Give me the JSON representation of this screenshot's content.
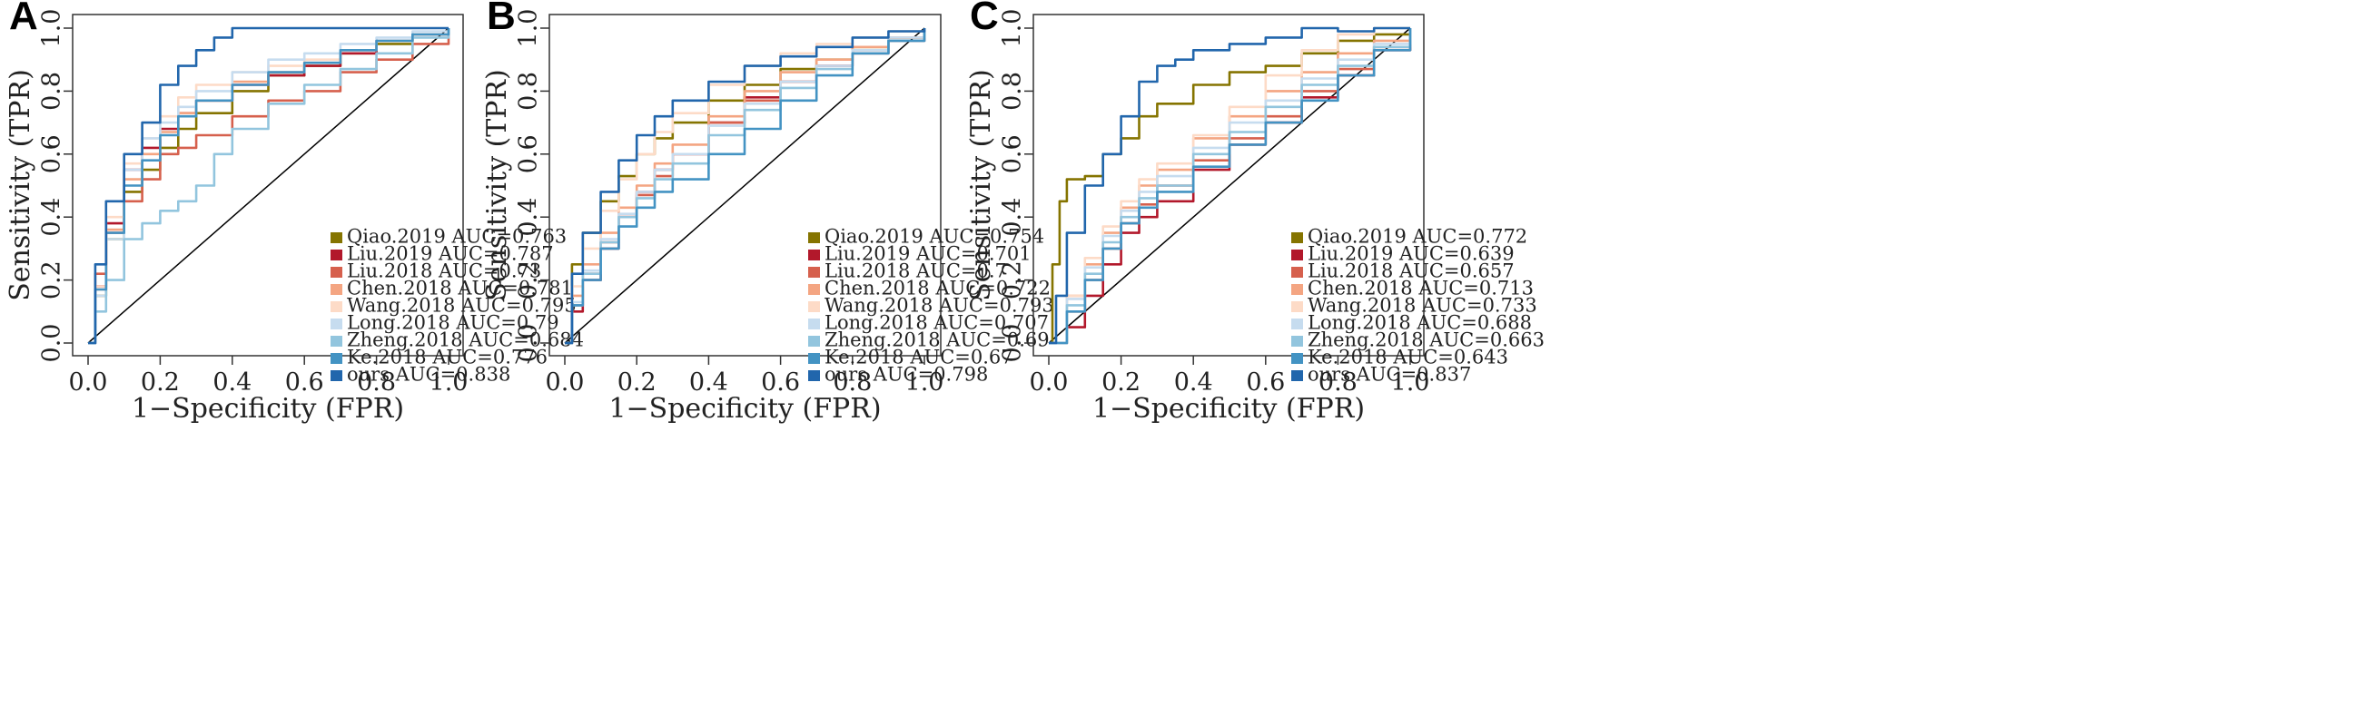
{
  "figure": {
    "x_label": "1−Specificity (FPR)",
    "y_label": "Sensitivity (TPR)",
    "ticks": [
      "0.0",
      "0.2",
      "0.4",
      "0.6",
      "0.8",
      "1.0"
    ]
  },
  "colors": {
    "Qiao.2019": "#857400",
    "Liu.2019": "#b2182b",
    "Liu.2018": "#d6604d",
    "Chen.2018": "#f4a582",
    "Wang.2018": "#fddbc7",
    "Long.2018": "#c6dcef",
    "Zheng.2018": "#92c5de",
    "Ke.2018": "#4393c3",
    "ours": "#2166ac",
    "diagonal": "#000000"
  },
  "chart_data": [
    {
      "type": "line",
      "panel": "A",
      "title": "",
      "xlabel": "1−Specificity (FPR)",
      "ylabel": "Sensitivity (TPR)",
      "xlim": [
        0,
        1
      ],
      "ylim": [
        0,
        1
      ],
      "reference_line": [
        [
          0,
          0
        ],
        [
          1,
          1
        ]
      ],
      "series": [
        {
          "key": "Qiao.2019",
          "legend": "Qiao.2019 AUC=0.763",
          "x": [
            0,
            0.02,
            0.05,
            0.1,
            0.15,
            0.2,
            0.25,
            0.3,
            0.4,
            0.5,
            0.6,
            0.7,
            0.8,
            0.9,
            1
          ],
          "y": [
            0,
            0.15,
            0.33,
            0.48,
            0.55,
            0.62,
            0.68,
            0.73,
            0.8,
            0.85,
            0.88,
            0.92,
            0.95,
            0.98,
            1
          ]
        },
        {
          "key": "Liu.2019",
          "legend": "Liu.2019 AUC=0.787",
          "x": [
            0,
            0.02,
            0.05,
            0.1,
            0.15,
            0.2,
            0.25,
            0.3,
            0.4,
            0.5,
            0.6,
            0.7,
            0.8,
            0.9,
            1
          ],
          "y": [
            0,
            0.18,
            0.38,
            0.55,
            0.62,
            0.68,
            0.73,
            0.77,
            0.82,
            0.85,
            0.88,
            0.92,
            0.96,
            0.98,
            1
          ]
        },
        {
          "key": "Liu.2018",
          "legend": "Liu.2018 AUC=0.73",
          "x": [
            0,
            0.02,
            0.05,
            0.1,
            0.15,
            0.2,
            0.25,
            0.3,
            0.4,
            0.5,
            0.6,
            0.7,
            0.8,
            0.9,
            1
          ],
          "y": [
            0,
            0.22,
            0.35,
            0.45,
            0.52,
            0.6,
            0.62,
            0.66,
            0.72,
            0.77,
            0.8,
            0.86,
            0.9,
            0.95,
            1
          ]
        },
        {
          "key": "Chen.2018",
          "legend": "Chen.2018 AUC=0.781",
          "x": [
            0,
            0.02,
            0.05,
            0.1,
            0.15,
            0.2,
            0.25,
            0.3,
            0.4,
            0.5,
            0.6,
            0.7,
            0.8,
            0.9,
            1
          ],
          "y": [
            0,
            0.17,
            0.36,
            0.52,
            0.6,
            0.67,
            0.73,
            0.77,
            0.83,
            0.86,
            0.89,
            0.93,
            0.96,
            0.98,
            1
          ]
        },
        {
          "key": "Wang.2018",
          "legend": "Wang.2018 AUC=0.795",
          "x": [
            0,
            0.02,
            0.05,
            0.1,
            0.15,
            0.2,
            0.25,
            0.3,
            0.4,
            0.5,
            0.6,
            0.7,
            0.8,
            0.9,
            1
          ],
          "y": [
            0,
            0.18,
            0.4,
            0.57,
            0.65,
            0.72,
            0.78,
            0.82,
            0.86,
            0.88,
            0.9,
            0.93,
            0.96,
            0.98,
            1
          ]
        },
        {
          "key": "Long.2018",
          "legend": "Long.2018 AUC=0.79",
          "x": [
            0,
            0.02,
            0.05,
            0.1,
            0.15,
            0.2,
            0.25,
            0.3,
            0.4,
            0.5,
            0.6,
            0.7,
            0.8,
            0.9,
            1
          ],
          "y": [
            0,
            0.15,
            0.33,
            0.55,
            0.65,
            0.7,
            0.75,
            0.8,
            0.86,
            0.9,
            0.92,
            0.95,
            0.97,
            0.99,
            1
          ]
        },
        {
          "key": "Zheng.2018",
          "legend": "Zheng.2018 AUC=0.684",
          "x": [
            0,
            0.02,
            0.05,
            0.1,
            0.15,
            0.2,
            0.25,
            0.3,
            0.35,
            0.4,
            0.5,
            0.6,
            0.7,
            0.8,
            0.9,
            1
          ],
          "y": [
            0,
            0.1,
            0.2,
            0.33,
            0.38,
            0.42,
            0.45,
            0.5,
            0.6,
            0.68,
            0.76,
            0.82,
            0.87,
            0.92,
            0.97,
            1
          ]
        },
        {
          "key": "Ke.2018",
          "legend": "Ke.2018 AUC=0.776",
          "x": [
            0,
            0.02,
            0.05,
            0.1,
            0.15,
            0.2,
            0.25,
            0.3,
            0.4,
            0.5,
            0.6,
            0.7,
            0.8,
            0.9,
            1
          ],
          "y": [
            0,
            0.17,
            0.35,
            0.5,
            0.58,
            0.66,
            0.72,
            0.77,
            0.82,
            0.86,
            0.89,
            0.93,
            0.96,
            0.98,
            1
          ]
        },
        {
          "key": "ours",
          "legend": "ours AUC=0.838",
          "x": [
            0,
            0.02,
            0.05,
            0.1,
            0.15,
            0.2,
            0.25,
            0.3,
            0.35,
            0.4,
            0.5,
            0.6,
            0.7,
            0.8,
            0.9,
            1
          ],
          "y": [
            0,
            0.25,
            0.45,
            0.6,
            0.7,
            0.82,
            0.88,
            0.93,
            0.97,
            1,
            1,
            1,
            1,
            1,
            1,
            1
          ]
        }
      ]
    },
    {
      "type": "line",
      "panel": "B",
      "title": "",
      "xlabel": "1−Specificity (FPR)",
      "ylabel": "Sensitivity (TPR)",
      "xlim": [
        0,
        1
      ],
      "ylim": [
        0,
        1
      ],
      "reference_line": [
        [
          0,
          0
        ],
        [
          1,
          1
        ]
      ],
      "series": [
        {
          "key": "Qiao.2019",
          "legend": "Qiao.2019 AUC=0.754",
          "x": [
            0,
            0.02,
            0.05,
            0.1,
            0.15,
            0.2,
            0.25,
            0.3,
            0.4,
            0.5,
            0.6,
            0.7,
            0.8,
            0.9,
            1
          ],
          "y": [
            0,
            0.25,
            0.35,
            0.45,
            0.53,
            0.6,
            0.65,
            0.7,
            0.77,
            0.82,
            0.87,
            0.9,
            0.94,
            0.97,
            1
          ]
        },
        {
          "key": "Liu.2019",
          "legend": "Liu.2019 AUC=0.701",
          "x": [
            0,
            0.02,
            0.05,
            0.1,
            0.15,
            0.2,
            0.25,
            0.3,
            0.4,
            0.5,
            0.6,
            0.7,
            0.8,
            0.9,
            1
          ],
          "y": [
            0,
            0.1,
            0.2,
            0.3,
            0.4,
            0.48,
            0.55,
            0.6,
            0.7,
            0.78,
            0.83,
            0.88,
            0.92,
            0.96,
            1
          ]
        },
        {
          "key": "Liu.2018",
          "legend": "Liu.2018 AUC=0.7",
          "x": [
            0,
            0.02,
            0.05,
            0.1,
            0.15,
            0.2,
            0.25,
            0.3,
            0.4,
            0.5,
            0.6,
            0.7,
            0.8,
            0.9,
            1
          ],
          "y": [
            0,
            0.12,
            0.22,
            0.32,
            0.4,
            0.47,
            0.53,
            0.6,
            0.7,
            0.77,
            0.83,
            0.88,
            0.93,
            0.97,
            1
          ]
        },
        {
          "key": "Chen.2018",
          "legend": "Chen.2018 AUC=0.722",
          "x": [
            0,
            0.02,
            0.05,
            0.1,
            0.15,
            0.2,
            0.25,
            0.3,
            0.4,
            0.5,
            0.6,
            0.7,
            0.8,
            0.9,
            1
          ],
          "y": [
            0,
            0.15,
            0.25,
            0.35,
            0.43,
            0.5,
            0.57,
            0.63,
            0.72,
            0.8,
            0.86,
            0.9,
            0.94,
            0.97,
            1
          ]
        },
        {
          "key": "Wang.2018",
          "legend": "Wang.2018 AUC=0.793",
          "x": [
            0,
            0.02,
            0.05,
            0.1,
            0.15,
            0.2,
            0.25,
            0.3,
            0.4,
            0.5,
            0.6,
            0.7,
            0.8,
            0.9,
            1
          ],
          "y": [
            0,
            0.18,
            0.3,
            0.42,
            0.52,
            0.6,
            0.67,
            0.73,
            0.82,
            0.88,
            0.92,
            0.95,
            0.97,
            0.99,
            1
          ]
        },
        {
          "key": "Long.2018",
          "legend": "Long.2018 AUC=0.707",
          "x": [
            0,
            0.02,
            0.05,
            0.1,
            0.15,
            0.2,
            0.25,
            0.3,
            0.4,
            0.5,
            0.6,
            0.7,
            0.8,
            0.9,
            1
          ],
          "y": [
            0,
            0.13,
            0.23,
            0.33,
            0.41,
            0.48,
            0.55,
            0.6,
            0.69,
            0.76,
            0.83,
            0.88,
            0.93,
            0.97,
            1
          ]
        },
        {
          "key": "Zheng.2018",
          "legend": "Zheng.2018 AUC=0.69",
          "x": [
            0,
            0.02,
            0.05,
            0.1,
            0.15,
            0.2,
            0.25,
            0.3,
            0.4,
            0.5,
            0.6,
            0.7,
            0.8,
            0.9,
            1
          ],
          "y": [
            0,
            0.12,
            0.22,
            0.32,
            0.4,
            0.46,
            0.52,
            0.57,
            0.66,
            0.74,
            0.81,
            0.87,
            0.92,
            0.96,
            1
          ]
        },
        {
          "key": "Ke.2018",
          "legend": "Ke.2018 AUC=0.67",
          "x": [
            0,
            0.02,
            0.05,
            0.1,
            0.15,
            0.2,
            0.25,
            0.3,
            0.4,
            0.5,
            0.6,
            0.7,
            0.8,
            0.9,
            1
          ],
          "y": [
            0,
            0.12,
            0.2,
            0.3,
            0.37,
            0.43,
            0.48,
            0.52,
            0.6,
            0.68,
            0.77,
            0.85,
            0.92,
            0.96,
            1
          ]
        },
        {
          "key": "ours",
          "legend": "ours AUC=0.798",
          "x": [
            0,
            0.02,
            0.05,
            0.1,
            0.15,
            0.2,
            0.25,
            0.3,
            0.4,
            0.5,
            0.6,
            0.7,
            0.8,
            0.9,
            1
          ],
          "y": [
            0,
            0.22,
            0.35,
            0.48,
            0.58,
            0.66,
            0.72,
            0.77,
            0.83,
            0.88,
            0.91,
            0.94,
            0.97,
            0.99,
            1
          ]
        }
      ]
    },
    {
      "type": "line",
      "panel": "C",
      "title": "",
      "xlabel": "1−Specificity (FPR)",
      "ylabel": "Sensitivity (TPR)",
      "xlim": [
        0,
        1
      ],
      "ylim": [
        0,
        1
      ],
      "reference_line": [
        [
          0,
          0
        ],
        [
          1,
          1
        ]
      ],
      "series": [
        {
          "key": "Qiao.2019",
          "legend": "Qiao.2019 AUC=0.772",
          "x": [
            0,
            0.01,
            0.03,
            0.05,
            0.1,
            0.15,
            0.2,
            0.25,
            0.3,
            0.4,
            0.5,
            0.6,
            0.7,
            0.8,
            0.9,
            1
          ],
          "y": [
            0,
            0.25,
            0.45,
            0.52,
            0.53,
            0.6,
            0.65,
            0.72,
            0.76,
            0.82,
            0.86,
            0.88,
            0.92,
            0.96,
            0.98,
            1
          ]
        },
        {
          "key": "Liu.2019",
          "legend": "Liu.2019 AUC=0.639",
          "x": [
            0,
            0.05,
            0.1,
            0.15,
            0.2,
            0.25,
            0.3,
            0.4,
            0.5,
            0.6,
            0.7,
            0.8,
            0.9,
            1
          ],
          "y": [
            0,
            0.05,
            0.15,
            0.25,
            0.35,
            0.4,
            0.45,
            0.55,
            0.63,
            0.7,
            0.78,
            0.85,
            0.93,
            1
          ]
        },
        {
          "key": "Liu.2018",
          "legend": "Liu.2018 AUC=0.657",
          "x": [
            0,
            0.05,
            0.1,
            0.15,
            0.2,
            0.25,
            0.3,
            0.4,
            0.5,
            0.6,
            0.7,
            0.8,
            0.9,
            1
          ],
          "y": [
            0,
            0.1,
            0.2,
            0.3,
            0.38,
            0.44,
            0.5,
            0.58,
            0.65,
            0.72,
            0.8,
            0.87,
            0.94,
            1
          ]
        },
        {
          "key": "Chen.2018",
          "legend": "Chen.2018 AUC=0.713",
          "x": [
            0,
            0.05,
            0.1,
            0.15,
            0.2,
            0.25,
            0.3,
            0.4,
            0.5,
            0.6,
            0.7,
            0.8,
            0.9,
            1
          ],
          "y": [
            0,
            0.15,
            0.25,
            0.35,
            0.43,
            0.5,
            0.55,
            0.65,
            0.72,
            0.8,
            0.86,
            0.92,
            0.96,
            1
          ]
        },
        {
          "key": "Wang.2018",
          "legend": "Wang.2018 AUC=0.733",
          "x": [
            0,
            0.05,
            0.1,
            0.15,
            0.2,
            0.25,
            0.3,
            0.4,
            0.5,
            0.6,
            0.7,
            0.8,
            0.9,
            1
          ],
          "y": [
            0,
            0.15,
            0.27,
            0.37,
            0.45,
            0.52,
            0.57,
            0.66,
            0.75,
            0.85,
            0.93,
            0.98,
            1,
            1
          ]
        },
        {
          "key": "Long.2018",
          "legend": "Long.2018 AUC=0.688",
          "x": [
            0,
            0.05,
            0.1,
            0.15,
            0.2,
            0.25,
            0.3,
            0.4,
            0.5,
            0.6,
            0.7,
            0.8,
            0.9,
            1
          ],
          "y": [
            0,
            0.14,
            0.24,
            0.34,
            0.42,
            0.48,
            0.53,
            0.62,
            0.7,
            0.77,
            0.84,
            0.9,
            0.95,
            1
          ]
        },
        {
          "key": "Zheng.2018",
          "legend": "Zheng.2018 AUC=0.663",
          "x": [
            0,
            0.05,
            0.1,
            0.15,
            0.2,
            0.25,
            0.3,
            0.4,
            0.5,
            0.6,
            0.7,
            0.8,
            0.9,
            1
          ],
          "y": [
            0,
            0.12,
            0.22,
            0.32,
            0.4,
            0.46,
            0.5,
            0.6,
            0.67,
            0.75,
            0.82,
            0.88,
            0.94,
            1
          ]
        },
        {
          "key": "Ke.2018",
          "legend": "Ke.2018 AUC=0.643",
          "x": [
            0,
            0.05,
            0.1,
            0.15,
            0.2,
            0.25,
            0.3,
            0.4,
            0.5,
            0.6,
            0.7,
            0.8,
            0.9,
            1
          ],
          "y": [
            0,
            0.1,
            0.2,
            0.3,
            0.38,
            0.43,
            0.48,
            0.56,
            0.63,
            0.7,
            0.77,
            0.85,
            0.93,
            1
          ]
        },
        {
          "key": "ours",
          "legend": "ours AUC=0.837",
          "x": [
            0,
            0.02,
            0.05,
            0.1,
            0.15,
            0.2,
            0.25,
            0.3,
            0.35,
            0.4,
            0.5,
            0.6,
            0.7,
            0.8,
            0.9,
            1
          ],
          "y": [
            0,
            0.15,
            0.35,
            0.5,
            0.6,
            0.72,
            0.83,
            0.88,
            0.9,
            0.93,
            0.95,
            0.97,
            1,
            0.99,
            1,
            1
          ]
        }
      ]
    }
  ]
}
